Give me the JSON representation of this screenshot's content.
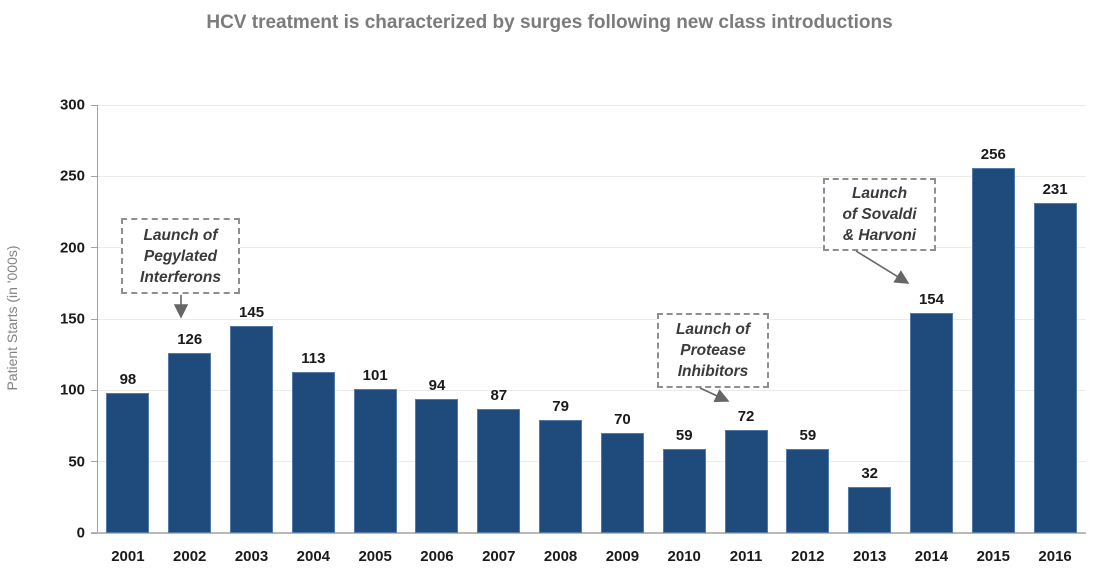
{
  "chart_data": {
    "type": "bar",
    "title": "HCV treatment is characterized by surges following new class introductions",
    "xlabel": "",
    "ylabel": "Patient Starts (in '000s)",
    "categories": [
      "2001",
      "2002",
      "2003",
      "2004",
      "2005",
      "2006",
      "2007",
      "2008",
      "2009",
      "2010",
      "2011",
      "2012",
      "2013",
      "2014",
      "2015",
      "2016"
    ],
    "values": [
      98,
      126,
      145,
      113,
      101,
      94,
      87,
      79,
      70,
      59,
      72,
      59,
      32,
      154,
      256,
      231
    ],
    "ylim": [
      0,
      300
    ],
    "yticks": [
      0,
      50,
      100,
      150,
      200,
      250,
      300
    ],
    "grid": true,
    "legend": "none",
    "bar_color": "#1f4a7c",
    "annotations": [
      {
        "lines": [
          "Launch of",
          "Pegylated",
          "Interferons"
        ],
        "target_year": "2002"
      },
      {
        "lines": [
          "Launch of",
          "Protease",
          "Inhibitors"
        ],
        "target_year": "2011"
      },
      {
        "lines": [
          "Launch",
          "of Sovaldi",
          "& Harvoni"
        ],
        "target_year": "2014"
      }
    ]
  },
  "colors": {
    "bar": "#1f4a7c",
    "bar_edge": "#527aab",
    "title_text": "#7b7b7b",
    "axis_text": "#1a1a1a",
    "annotation_text": "#3a3a3a",
    "gridline": "#edebe5",
    "arrow": "#666666"
  }
}
